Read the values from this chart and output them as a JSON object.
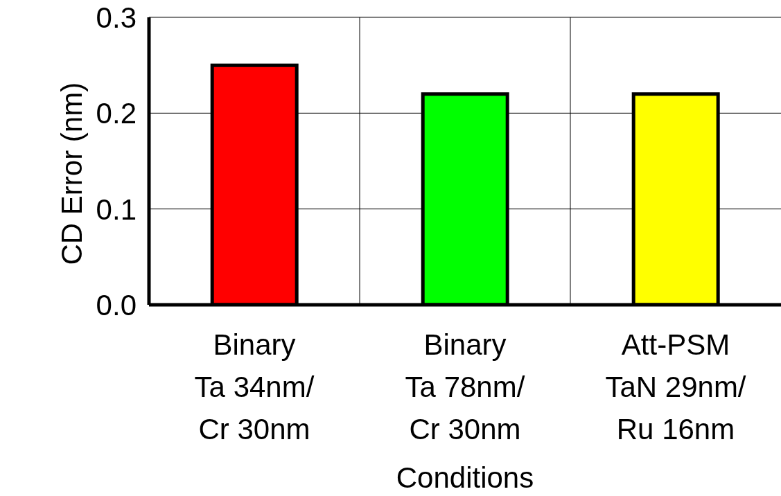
{
  "chart_data": {
    "type": "bar",
    "xlabel": "Conditions",
    "ylabel": "CD Error (nm)",
    "categories": [
      "Binary\nTa 34nm/\nCr 30nm",
      "Binary\nTa 78nm/\nCr 30nm",
      "Att-PSM\nTaN 29nm/\nRu 16nm"
    ],
    "values": [
      0.25,
      0.22,
      0.22
    ],
    "colors": [
      "#ff0000",
      "#00ff00",
      "#ffff00"
    ],
    "ylim": [
      0,
      0.3
    ],
    "yticks": [
      {
        "value": 0,
        "label": "0.0"
      },
      {
        "value": 0.1,
        "label": "0.1"
      },
      {
        "value": 0.2,
        "label": "0.2"
      },
      {
        "value": 0.3,
        "label": "0.3"
      }
    ],
    "grid": true
  }
}
